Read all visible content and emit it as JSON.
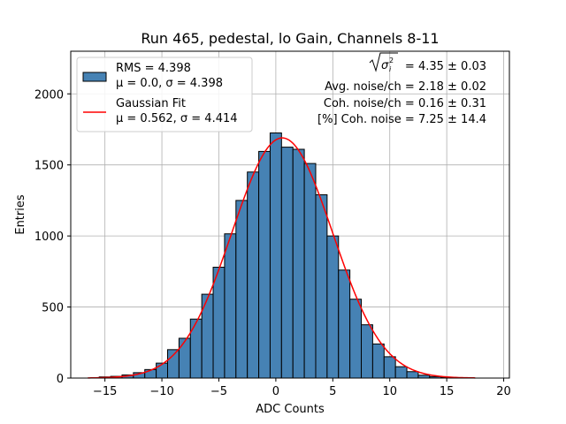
{
  "chart_data": {
    "type": "bar",
    "title": "Run 465, pedestal, lo Gain, Channels 8-11",
    "xlabel": "ADC Counts",
    "ylabel": "Entries",
    "xlim": [
      -18,
      20.5
    ],
    "ylim": [
      0,
      2300
    ],
    "x_ticks": [
      -15,
      -10,
      -5,
      0,
      5,
      10,
      15,
      20
    ],
    "y_ticks": [
      0,
      500,
      1000,
      1500,
      2000
    ],
    "grid": true,
    "legend_placement": "top-left",
    "bar_color": "#4682b4",
    "fit_color": "#ff0000",
    "bin_width": 1,
    "bins": [
      {
        "x": -15,
        "value": 8
      },
      {
        "x": -14,
        "value": 12
      },
      {
        "x": -13,
        "value": 22
      },
      {
        "x": -12,
        "value": 38
      },
      {
        "x": -11,
        "value": 60
      },
      {
        "x": -10,
        "value": 105
      },
      {
        "x": -9,
        "value": 200
      },
      {
        "x": -8,
        "value": 280
      },
      {
        "x": -7,
        "value": 415
      },
      {
        "x": -6,
        "value": 590
      },
      {
        "x": -5,
        "value": 780
      },
      {
        "x": -4,
        "value": 1015
      },
      {
        "x": -3,
        "value": 1250
      },
      {
        "x": -2,
        "value": 1450
      },
      {
        "x": -1,
        "value": 1595
      },
      {
        "x": 0,
        "value": 1725
      },
      {
        "x": 1,
        "value": 1625
      },
      {
        "x": 2,
        "value": 1610
      },
      {
        "x": 3,
        "value": 1510
      },
      {
        "x": 4,
        "value": 1290
      },
      {
        "x": 5,
        "value": 1000
      },
      {
        "x": 6,
        "value": 760
      },
      {
        "x": 7,
        "value": 555
      },
      {
        "x": 8,
        "value": 375
      },
      {
        "x": 9,
        "value": 240
      },
      {
        "x": 10,
        "value": 150
      },
      {
        "x": 11,
        "value": 80
      },
      {
        "x": 12,
        "value": 45
      },
      {
        "x": 13,
        "value": 20
      },
      {
        "x": 14,
        "value": 10
      },
      {
        "x": 15,
        "value": 5
      }
    ],
    "fit": {
      "mu": 0.562,
      "sigma": 4.414,
      "amplitude": 1690,
      "x_range": [
        -16.5,
        17.5
      ]
    },
    "legend": [
      {
        "type": "bar",
        "lines": [
          "RMS = 4.398",
          "μ = 0.0, σ = 4.398"
        ]
      },
      {
        "type": "line",
        "lines": [
          "Gaussian Fit",
          "μ = 0.562, σ = 4.414"
        ]
      }
    ],
    "stats": {
      "line1_value": " = 4.35 ± 0.03",
      "line2": "Avg. noise/ch = 2.18 ± 0.02",
      "line3": "Coh. noise/ch = 0.16 ± 0.31",
      "line4": "[%] Coh. noise = 7.25 ± 14.4"
    }
  }
}
